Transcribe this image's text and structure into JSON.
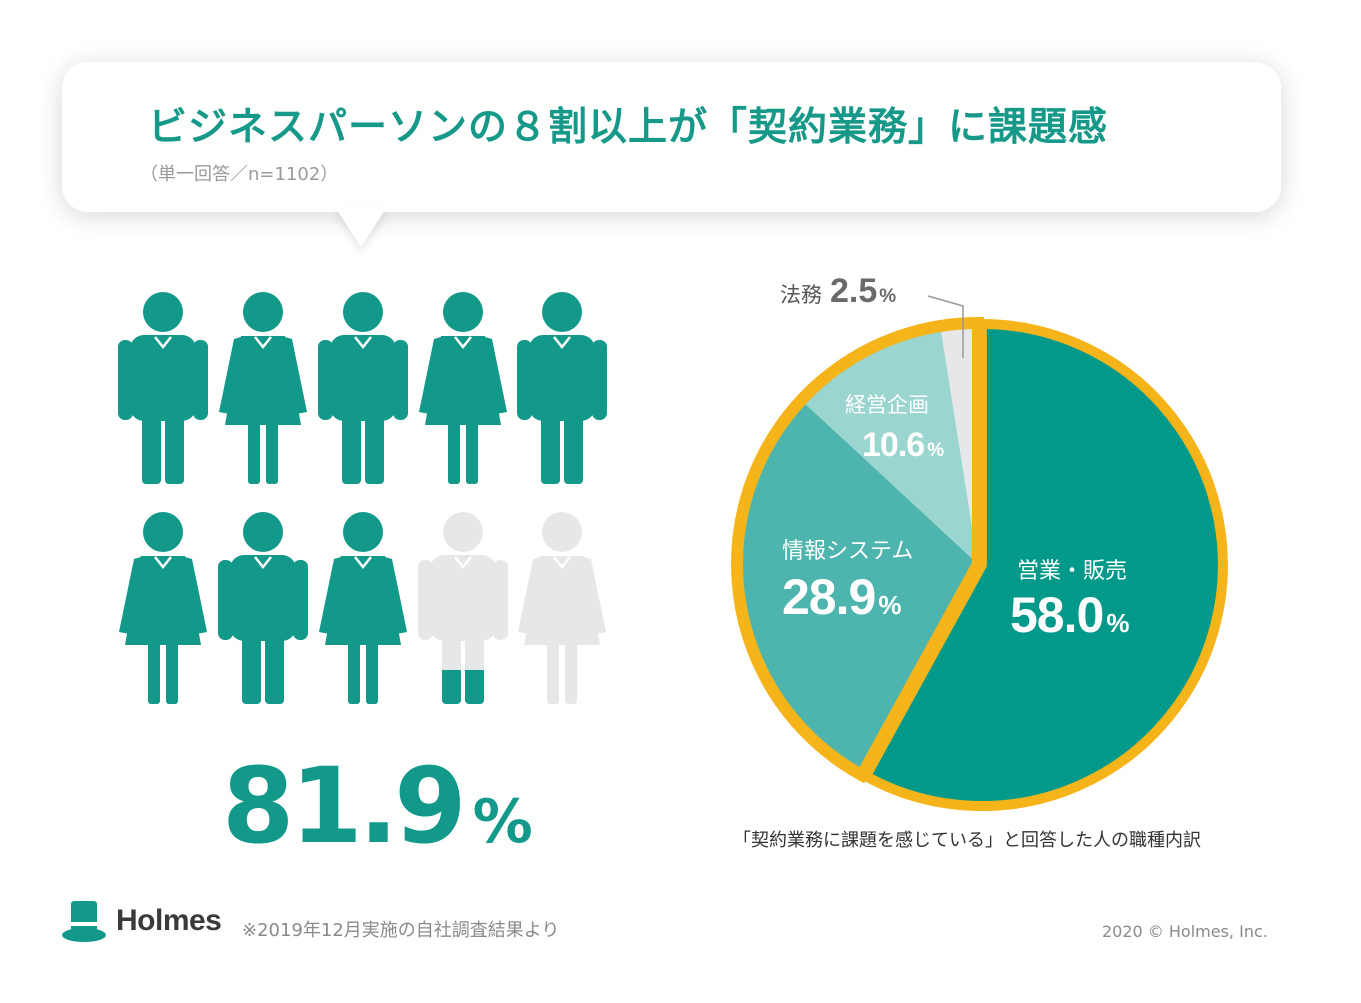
{
  "header": {
    "title": "ビジネスパーソンの８割以上が「契約業務」に課題感",
    "subtitle": "（単一回答／n=1102）"
  },
  "people_chart": {
    "value_number": "81.9",
    "value_unit": "%",
    "percent": 81.9,
    "icons": [
      "man",
      "woman",
      "man",
      "woman",
      "man",
      "woman",
      "man",
      "woman",
      "man",
      "woman"
    ],
    "filled_fraction": [
      1,
      1,
      1,
      1,
      1,
      1,
      1,
      1,
      0.19,
      0
    ],
    "colors": {
      "filled": "#12998a",
      "empty": "#e6e7e9"
    }
  },
  "chart_data": {
    "type": "pie",
    "caption": "「契約業務に課題を感じている」と回答した人の職種内訳",
    "slices": [
      {
        "label": "営業・販売",
        "value": 58.0,
        "value_text": "58.0",
        "unit": "%",
        "color": "#00998a",
        "exploded": true
      },
      {
        "label": "情報システム",
        "value": 28.9,
        "value_text": "28.9",
        "unit": "%",
        "color": "#4db5ad"
      },
      {
        "label": "経営企画",
        "value": 10.6,
        "value_text": "10.6",
        "unit": "%",
        "color": "#9ad5cf"
      },
      {
        "label": "法務",
        "value": 2.5,
        "value_text": "2.5",
        "unit": "%",
        "color": "#e6e7e9"
      }
    ],
    "outline_color": "#f5b41a"
  },
  "footer": {
    "logo_name": "Holmes",
    "note": "※2019年12月実施の自社調査結果より",
    "copyright": "2020 © Holmes, Inc."
  }
}
